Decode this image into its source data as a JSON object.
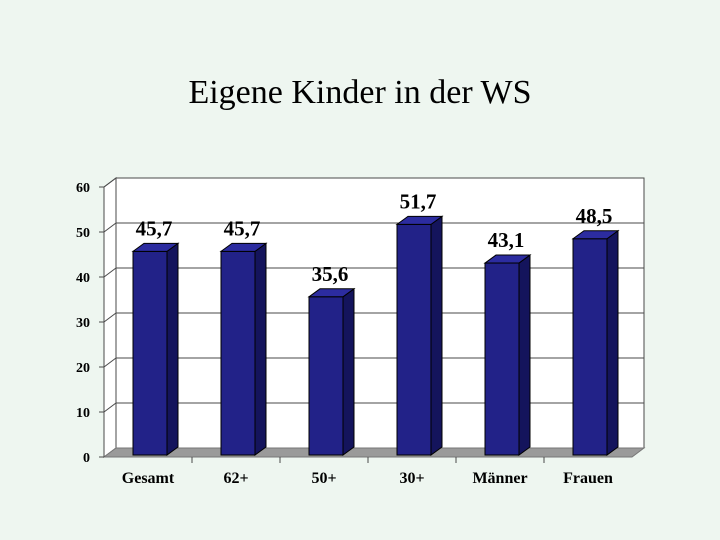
{
  "slide": {
    "title": "Eigene Kinder in der WS"
  },
  "colors": {
    "bar_front": "#222288",
    "bar_side": "#14145c",
    "bar_top": "#2c2ca0",
    "floor": "#9a9a9a",
    "wall": "#ffffff",
    "grid": "#4a4a4a"
  },
  "chart_data": {
    "type": "bar",
    "categories": [
      "Gesamt",
      "62+",
      "50+",
      "30+",
      "Männer",
      "Frauen"
    ],
    "values": [
      45.7,
      45.7,
      35.6,
      51.7,
      43.1,
      48.5
    ],
    "value_labels": [
      "45,7",
      "45,7",
      "35,6",
      "51,7",
      "43,1",
      "48,5"
    ],
    "title": "Eigene Kinder in der WS",
    "xlabel": "",
    "ylabel": "",
    "ylim": [
      0,
      60
    ],
    "yticks": [
      0,
      10,
      20,
      30,
      40,
      50,
      60
    ],
    "grid": true,
    "three_d": true
  }
}
